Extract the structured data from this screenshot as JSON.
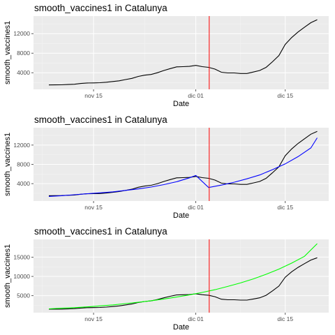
{
  "colors": {
    "panel_bg": "#ebebeb",
    "grid_major": "#ffffff",
    "grid_minor": "#f5f5f5",
    "observed": "#000000",
    "vline": "#ff0000",
    "fit_panel2": "#0000ff",
    "fit_panel3": "#00ff00"
  },
  "chart_data": [
    {
      "type": "line",
      "title": "smooth_vaccines1 in Catalunya",
      "xlabel": "Date",
      "ylabel": "smooth_vaccines1",
      "x_ticks": [
        "nov 15",
        "dic 01",
        "dic 15"
      ],
      "x_tick_days": [
        15,
        31,
        45
      ],
      "xlim_days": [
        5.6,
        51.8
      ],
      "y_ticks": [
        "4000",
        "8000",
        "12000"
      ],
      "y_tick_values": [
        4000,
        8000,
        12000
      ],
      "ylim": [
        600,
        15600
      ],
      "grid": true,
      "x_day_origin": "nov 01",
      "vline_day": 33.1,
      "series": [
        {
          "key": "observed",
          "x_days": [
            8,
            9,
            10,
            11,
            12,
            13,
            14,
            15,
            16,
            17,
            18,
            19,
            20,
            21,
            22,
            23,
            24,
            25,
            26,
            27,
            28,
            29,
            30,
            31,
            32,
            33,
            34,
            35,
            36,
            37,
            38,
            39,
            40,
            41,
            42,
            43,
            44,
            45,
            46,
            47,
            48,
            49,
            50
          ],
          "values": [
            1500,
            1520,
            1530,
            1580,
            1650,
            1800,
            1900,
            1920,
            1950,
            2050,
            2200,
            2350,
            2600,
            2850,
            3250,
            3500,
            3650,
            4000,
            4450,
            4850,
            5200,
            5250,
            5300,
            5500,
            5250,
            5100,
            4750,
            4100,
            3950,
            3950,
            3850,
            3850,
            4150,
            4450,
            5100,
            6250,
            7500,
            9800,
            11200,
            12350,
            13300,
            14250,
            14850
          ]
        }
      ]
    },
    {
      "type": "line",
      "title": "smooth_vaccines1 in Catalunya",
      "xlabel": "Date",
      "ylabel": "smooth_vaccines1",
      "x_ticks": [
        "nov 15",
        "dic 01",
        "dic 15"
      ],
      "x_tick_days": [
        15,
        31,
        45
      ],
      "xlim_days": [
        5.6,
        51.8
      ],
      "y_ticks": [
        "4000",
        "8000",
        "12000"
      ],
      "y_tick_values": [
        4000,
        8000,
        12000
      ],
      "ylim": [
        400,
        15600
      ],
      "grid": true,
      "x_day_origin": "nov 01",
      "vline_day": 33.1,
      "series": [
        {
          "key": "observed",
          "x_days": [
            8,
            9,
            10,
            11,
            12,
            13,
            14,
            15,
            16,
            17,
            18,
            19,
            20,
            21,
            22,
            23,
            24,
            25,
            26,
            27,
            28,
            29,
            30,
            31,
            32,
            33,
            34,
            35,
            36,
            37,
            38,
            39,
            40,
            41,
            42,
            43,
            44,
            45,
            46,
            47,
            48,
            49,
            50
          ],
          "values": [
            1500,
            1520,
            1530,
            1580,
            1650,
            1800,
            1900,
            1920,
            1950,
            2050,
            2200,
            2350,
            2600,
            2850,
            3250,
            3500,
            3650,
            4000,
            4450,
            4850,
            5200,
            5250,
            5300,
            5500,
            5250,
            5100,
            4750,
            4100,
            3950,
            3950,
            3850,
            3850,
            4150,
            4450,
            5100,
            6250,
            7500,
            9800,
            11200,
            12350,
            13300,
            14250,
            14850
          ]
        },
        {
          "key": "fit",
          "x_days": [
            8,
            10,
            12,
            14,
            16,
            18,
            20,
            22,
            24,
            26,
            28,
            30,
            31,
            33,
            35,
            37,
            39,
            41,
            43,
            45,
            47,
            49,
            50
          ],
          "values": [
            1350,
            1500,
            1700,
            1900,
            2100,
            2300,
            2600,
            2900,
            3300,
            3800,
            4400,
            5200,
            5700,
            3200,
            3700,
            4300,
            5000,
            5800,
            6900,
            8100,
            9600,
            11400,
            13500
          ]
        }
      ]
    },
    {
      "type": "line",
      "title": "smooth_vaccines1 in Catalunya",
      "xlabel": "Date",
      "ylabel": "smooth_vaccines1",
      "x_ticks": [
        "nov 15",
        "dic 01",
        "dic 15"
      ],
      "x_tick_days": [
        15,
        31,
        45
      ],
      "xlim_days": [
        5.6,
        51.8
      ],
      "y_ticks": [
        "5000",
        "10000",
        "15000"
      ],
      "y_tick_values": [
        5000,
        10000,
        15000
      ],
      "ylim": [
        600,
        19600
      ],
      "grid": true,
      "x_day_origin": "nov 01",
      "vline_day": 33.1,
      "series": [
        {
          "key": "observed",
          "x_days": [
            8,
            9,
            10,
            11,
            12,
            13,
            14,
            15,
            16,
            17,
            18,
            19,
            20,
            21,
            22,
            23,
            24,
            25,
            26,
            27,
            28,
            29,
            30,
            31,
            32,
            33,
            34,
            35,
            36,
            37,
            38,
            39,
            40,
            41,
            42,
            43,
            44,
            45,
            46,
            47,
            48,
            49,
            50
          ],
          "values": [
            1500,
            1520,
            1530,
            1580,
            1650,
            1800,
            1900,
            1920,
            1950,
            2050,
            2200,
            2350,
            2600,
            2850,
            3250,
            3500,
            3650,
            4000,
            4450,
            4850,
            5200,
            5250,
            5300,
            5500,
            5250,
            5100,
            4750,
            4100,
            3950,
            3950,
            3850,
            3850,
            4150,
            4450,
            5100,
            6250,
            7500,
            9800,
            11200,
            12350,
            13300,
            14250,
            14850
          ]
        },
        {
          "key": "fit",
          "x_days": [
            8,
            10,
            12,
            14,
            16,
            18,
            20,
            22,
            24,
            26,
            28,
            30,
            32,
            34,
            36,
            38,
            40,
            42,
            44,
            46,
            48,
            50
          ],
          "values": [
            1600,
            1750,
            1900,
            2100,
            2350,
            2600,
            2950,
            3300,
            3700,
            4150,
            4650,
            5200,
            5850,
            6550,
            7400,
            8300,
            9350,
            10550,
            11900,
            13450,
            15200,
            18500
          ]
        }
      ]
    }
  ]
}
